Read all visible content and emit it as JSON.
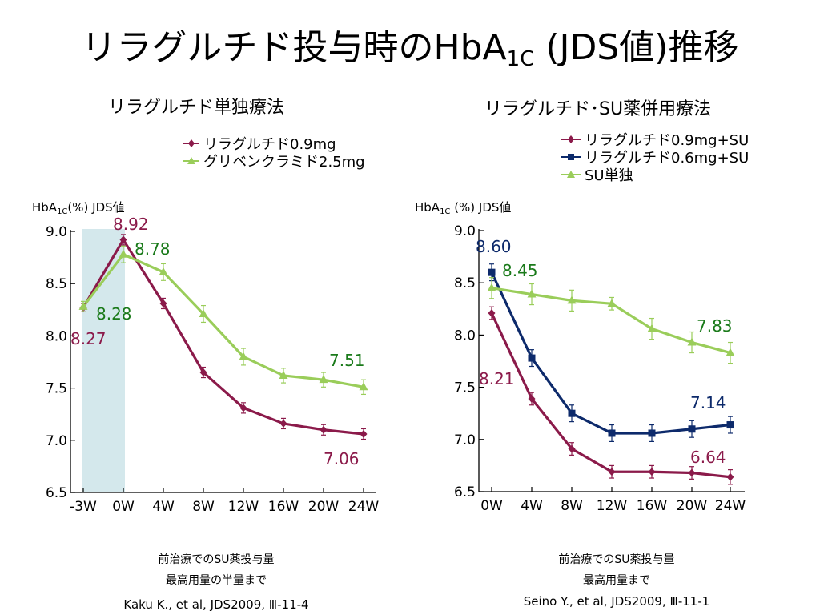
{
  "page": {
    "title_main": "リラグルチド投与時のHbA",
    "title_sub": "1C",
    "title_tail": " (JDS値)推移"
  },
  "colors": {
    "liraglutide_09": "#8b1a4a",
    "liraglutide_06": "#0d2a6b",
    "comparator": "#9acd5a",
    "label_green": "#1a7a1a",
    "shade": "#d4e8ec"
  },
  "chart_data": [
    {
      "type": "line",
      "subtitle": "リラグルチド単独療法",
      "ylabel_main": "HbA",
      "ylabel_sub": "1C",
      "ylabel_tail": "(%)  JDS値",
      "categories": [
        "-3W",
        "0W",
        "4W",
        "8W",
        "12W",
        "16W",
        "20W",
        "24W"
      ],
      "yticks": [
        "9.0",
        "8.5",
        "8.0",
        "7.5",
        "7.0",
        "6.5"
      ],
      "ylim": [
        6.5,
        9.0
      ],
      "shaded_range": [
        "-3W",
        "0W"
      ],
      "series": [
        {
          "name": "リラグルチド0.9mg",
          "marker": "diamond",
          "color": "#8b1a4a",
          "values": [
            8.27,
            8.92,
            8.31,
            7.65,
            7.31,
            7.16,
            7.1,
            7.06
          ],
          "errors": [
            0.04,
            0.05,
            0.05,
            0.05,
            0.05,
            0.05,
            0.05,
            0.05
          ]
        },
        {
          "name": "グリベンクラミド2.5mg",
          "marker": "triangle",
          "color": "#9acd5a",
          "values": [
            8.28,
            8.78,
            8.61,
            8.21,
            7.8,
            7.62,
            7.58,
            7.51
          ],
          "errors": [
            0.05,
            0.08,
            0.08,
            0.08,
            0.08,
            0.07,
            0.07,
            0.07
          ]
        }
      ],
      "annotations": [
        {
          "text": "8.92",
          "color": "#8b1a4a"
        },
        {
          "text": "8.78",
          "color": "#1a7a1a"
        },
        {
          "text": "8.28",
          "color": "#1a7a1a"
        },
        {
          "text": "8.27",
          "color": "#8b1a4a"
        },
        {
          "text": "7.51",
          "color": "#1a7a1a"
        },
        {
          "text": "7.06",
          "color": "#8b1a4a"
        }
      ],
      "notes": [
        "前治療でのSU薬投与量",
        "最高用量の半量まで"
      ],
      "citation": "Kaku K., et al, JDS2009, Ⅲ-11-4"
    },
    {
      "type": "line",
      "subtitle": "リラグルチド･SU薬併用療法",
      "ylabel_main": "HbA",
      "ylabel_sub": "1C",
      "ylabel_tail": " (%)  JDS値",
      "categories": [
        "0W",
        "4W",
        "8W",
        "12W",
        "16W",
        "20W",
        "24W"
      ],
      "yticks": [
        "9.0",
        "8.5",
        "8.0",
        "7.5",
        "7.0",
        "6.5"
      ],
      "ylim": [
        6.5,
        9.0
      ],
      "series": [
        {
          "name": "リラグルチド0.9mg+SU",
          "marker": "diamond",
          "color": "#8b1a4a",
          "values": [
            8.21,
            7.39,
            6.91,
            6.69,
            6.69,
            6.68,
            6.64
          ],
          "errors": [
            0.06,
            0.06,
            0.06,
            0.06,
            0.06,
            0.06,
            0.07
          ]
        },
        {
          "name": "リラグルチド0.6mg+SU",
          "marker": "square",
          "color": "#0d2a6b",
          "values": [
            8.6,
            7.78,
            7.25,
            7.06,
            7.06,
            7.1,
            7.14
          ],
          "errors": [
            0.08,
            0.08,
            0.08,
            0.08,
            0.08,
            0.08,
            0.08
          ]
        },
        {
          "name": "SU単独",
          "marker": "triangle",
          "color": "#9acd5a",
          "values": [
            8.45,
            8.39,
            8.33,
            8.3,
            8.06,
            7.93,
            7.83
          ],
          "errors": [
            0.1,
            0.1,
            0.1,
            0.06,
            0.1,
            0.1,
            0.1
          ]
        }
      ],
      "annotations": [
        {
          "text": "8.60",
          "color": "#0d2a6b"
        },
        {
          "text": "8.45",
          "color": "#1a7a1a"
        },
        {
          "text": "7.83",
          "color": "#1a7a1a"
        },
        {
          "text": "8.21",
          "color": "#8b1a4a"
        },
        {
          "text": "7.14",
          "color": "#0d2a6b"
        },
        {
          "text": "6.64",
          "color": "#8b1a4a"
        }
      ],
      "notes": [
        "前治療でのSU薬投与量",
        "最高用量まで"
      ],
      "citation": "Seino Y., et al, JDS2009, Ⅲ-11-1"
    }
  ]
}
